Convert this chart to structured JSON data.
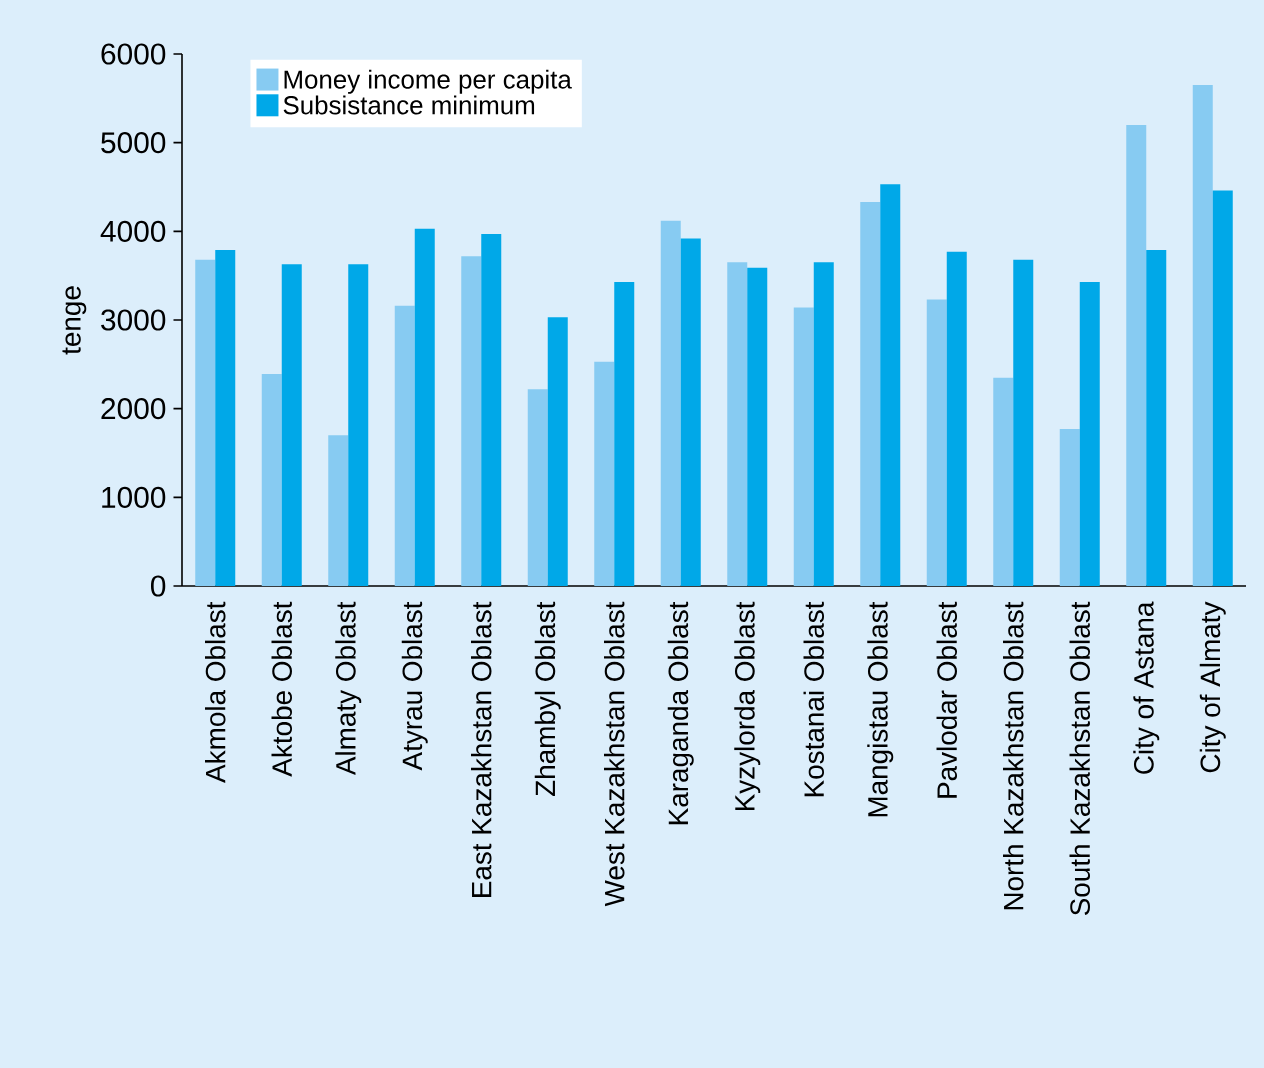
{
  "chart_data": {
    "type": "bar",
    "ylabel": "tenge",
    "categories": [
      "Akmola Oblast",
      "Aktobe Oblast",
      "Almaty Oblast",
      "Atyrau Oblast",
      "East Kazakhstan Oblast",
      "Zhambyl Oblast",
      "West Kazakhstan Oblast",
      "Karaganda Oblast",
      "Kyzylorda Oblast",
      "Kostanai Oblast",
      "Mangistau Oblast",
      "Pavlodar Oblast",
      "North Kazakhstan Oblast",
      "South Kazakhstan Oblast",
      "City of Astana",
      "City of Almaty"
    ],
    "series": [
      {
        "name": "Money income per capita",
        "color": "#87cbf2",
        "values": [
          3680,
          2390,
          1700,
          3160,
          3720,
          2220,
          2530,
          4120,
          3650,
          3140,
          4330,
          3230,
          2350,
          1770,
          5200,
          5650
        ]
      },
      {
        "name": "Subsistance minimum",
        "color": "#00a8e8",
        "values": [
          3790,
          3630,
          3630,
          4030,
          3970,
          3030,
          3430,
          3920,
          3590,
          3650,
          4530,
          3770,
          3680,
          3430,
          3790,
          4460
        ]
      }
    ],
    "ylim": [
      0,
      6000
    ],
    "yticks": [
      0,
      1000,
      2000,
      3000,
      4000,
      5000,
      6000
    ],
    "legend": "top left"
  }
}
